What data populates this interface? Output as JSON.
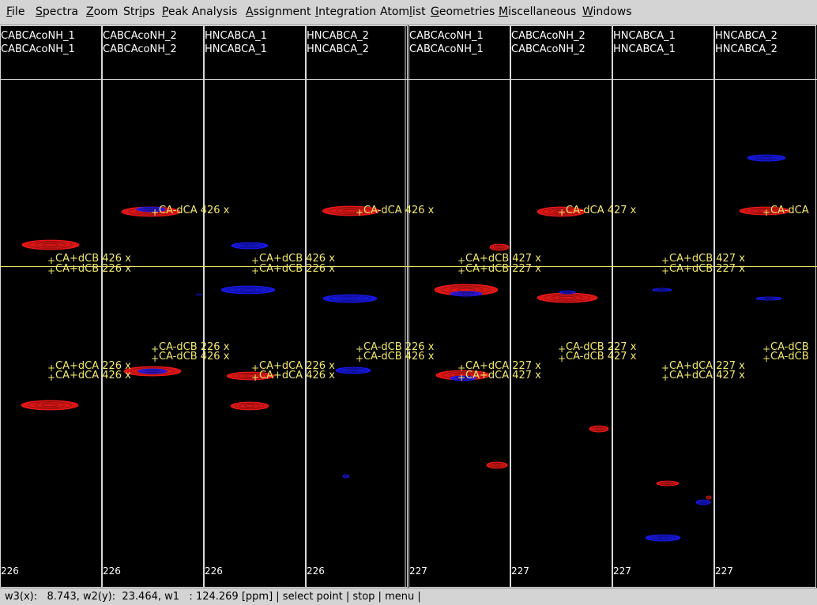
{
  "menu": [
    {
      "pre": "",
      "ul": "F",
      "post": "ile"
    },
    {
      "pre": "",
      "ul": "S",
      "post": "pectra"
    },
    {
      "pre": "",
      "ul": "Z",
      "post": "oom"
    },
    {
      "pre": "Str",
      "ul": "i",
      "post": "ps"
    },
    {
      "pre": "",
      "ul": "P",
      "post": "eak Analysis"
    },
    {
      "pre": "",
      "ul": "A",
      "post": "ssignment"
    },
    {
      "pre": "",
      "ul": "I",
      "post": "ntegration"
    },
    {
      "pre": "Atom",
      "ul": "l",
      "post": "ist"
    },
    {
      "pre": "",
      "ul": "G",
      "post": "eometries"
    },
    {
      "pre": "",
      "ul": "M",
      "post": "iscellaneous"
    },
    {
      "pre": "",
      "ul": "W",
      "post": "indows"
    }
  ],
  "colors": {
    "positive_contour": "#ff1a1a",
    "negative_contour": "#1a1aff",
    "peak_label": "#f2e96b",
    "strip_border": "#d8d8d8",
    "cursor_line": "#e8e06a"
  },
  "strips": [
    {
      "spectrum": "CABCAcoNH_1",
      "title": "CABCAcoNH_1",
      "residue": "226"
    },
    {
      "spectrum": "CABCAcoNH_2",
      "title": "CABCAcoNH_2",
      "residue": "226"
    },
    {
      "spectrum": "HNCABCA_1",
      "title": "HNCABCA_1",
      "residue": "226"
    },
    {
      "spectrum": "HNCABCA_2",
      "title": "HNCABCA_2",
      "residue": "226"
    },
    {
      "spectrum": "CABCAcoNH_1",
      "title": "CABCAcoNH_1",
      "residue": "227"
    },
    {
      "spectrum": "CABCAcoNH_2",
      "title": "CABCAcoNH_2",
      "residue": "227"
    },
    {
      "spectrum": "HNCABCA_1",
      "title": "HNCABCA_1",
      "residue": "227"
    },
    {
      "spectrum": "HNCABCA_2",
      "title": "HNCABCA_2",
      "residue": "227"
    }
  ],
  "peak_labels": [
    "CA-dCA 426 x",
    "CA+dCB 426 x",
    "CA+dCB 226 x",
    "CA-dCB 226 x",
    "CA-dCB 426 x",
    "CA+dCA 226 x",
    "CA+dCA 426 x",
    "CA-dCA 427 x",
    "CA+dCB 427 x",
    "CA+dCB 227 x",
    "CA-dCB 227 x",
    "CA-dCB 427 x",
    "CA+dCA 227 x",
    "CA+dCA 427 x",
    "CA-dCA",
    "CA-dCB"
  ],
  "status": "w3(x):   8.743, w2(y):  23.464, w1   : 124.269 [ppm] | select point | stop | menu |"
}
